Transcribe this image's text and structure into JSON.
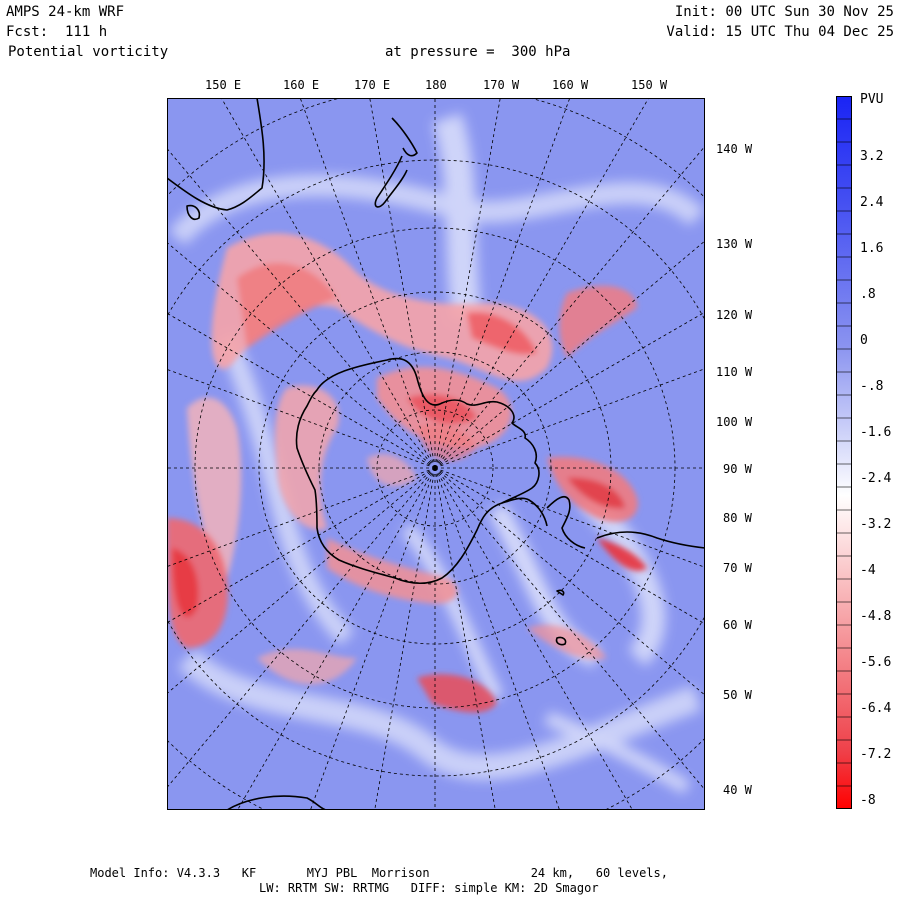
{
  "header": {
    "model": "AMPS 24-km WRF",
    "forecast": "Fcst:  111 h",
    "field": "Potential vorticity",
    "pressure": "at pressure =  300 hPa",
    "init": "Init: 00 UTC Sun 30 Nov 25",
    "valid": "Valid: 15 UTC Thu 04 Dec 25"
  },
  "map": {
    "top_lon_labels": [
      "150 E",
      "160 E",
      "170 E",
      "180",
      "170 W",
      "160 W",
      "150 W"
    ],
    "right_lon_labels": [
      "140 W",
      "130 W",
      "120 W",
      "110 W",
      "100 W",
      "90 W",
      "80 W",
      "70 W",
      "60 W",
      "50 W",
      "40 W"
    ],
    "colors": {
      "positive": "#3a45ee",
      "negative": "#ff1e1e",
      "neutral": "#ffffff",
      "background_blue": "#8a96f0",
      "coast": "#000000"
    }
  },
  "colorbar": {
    "unit": "PVU",
    "labels": [
      "3.2",
      "2.4",
      "1.6",
      ".8",
      "0",
      "-.8",
      "-1.6",
      "-2.4",
      "-3.2",
      "-4",
      "-4.8",
      "-5.6",
      "-6.4",
      "-7.2",
      "-8"
    ]
  },
  "footer": {
    "line1": "Model Info: V4.3.3   KF       MYJ PBL  Morrison              24 km,   60 levels,",
    "line2": "LW: RRTM SW: RRTMG   DIFF: simple KM: 2D Smagor"
  }
}
